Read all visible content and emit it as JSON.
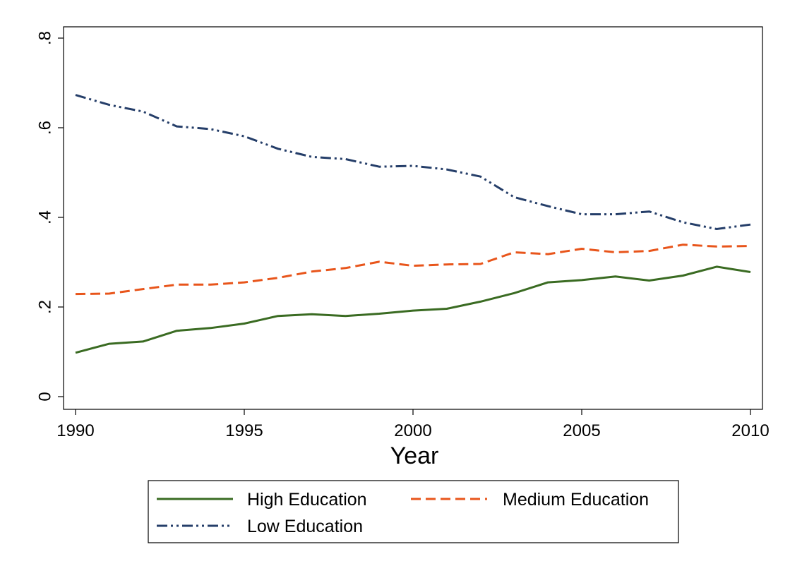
{
  "chart_data": {
    "type": "line",
    "title": "",
    "xlabel": "Year",
    "ylabel": "",
    "xlim": [
      1990,
      2010
    ],
    "ylim": [
      0,
      0.8
    ],
    "x_ticks": [
      1990,
      1995,
      2000,
      2005,
      2010
    ],
    "x_tick_labels": [
      "1990",
      "1995",
      "2000",
      "2005",
      "2010"
    ],
    "y_ticks": [
      0,
      0.2,
      0.4,
      0.6,
      0.8
    ],
    "y_tick_labels": [
      "0",
      ".2",
      ".4",
      ".6",
      ".8"
    ],
    "grid": false,
    "legend_position": "bottom",
    "x": [
      1990,
      1991,
      1992,
      1993,
      1994,
      1995,
      1996,
      1997,
      1998,
      1999,
      2000,
      2001,
      2002,
      2003,
      2004,
      2005,
      2006,
      2007,
      2008,
      2009,
      2010
    ],
    "series": [
      {
        "name": "High Education",
        "color": "#3a6b22",
        "dash": "solid",
        "values": [
          0.098,
          0.118,
          0.123,
          0.147,
          0.153,
          0.163,
          0.18,
          0.184,
          0.18,
          0.185,
          0.192,
          0.196,
          0.212,
          0.231,
          0.255,
          0.26,
          0.268,
          0.259,
          0.27,
          0.29,
          0.278
        ]
      },
      {
        "name": "Medium Education",
        "color": "#e8551b",
        "dash": "dash",
        "values": [
          0.229,
          0.23,
          0.24,
          0.25,
          0.25,
          0.255,
          0.265,
          0.279,
          0.287,
          0.301,
          0.292,
          0.295,
          0.296,
          0.322,
          0.318,
          0.33,
          0.322,
          0.325,
          0.339,
          0.335,
          0.336
        ]
      },
      {
        "name": "Low Education",
        "color": "#253e69",
        "dash": "dashdot",
        "values": [
          0.673,
          0.651,
          0.636,
          0.603,
          0.597,
          0.581,
          0.553,
          0.535,
          0.53,
          0.513,
          0.515,
          0.507,
          0.491,
          0.445,
          0.425,
          0.407,
          0.407,
          0.413,
          0.389,
          0.374,
          0.384
        ]
      }
    ]
  }
}
